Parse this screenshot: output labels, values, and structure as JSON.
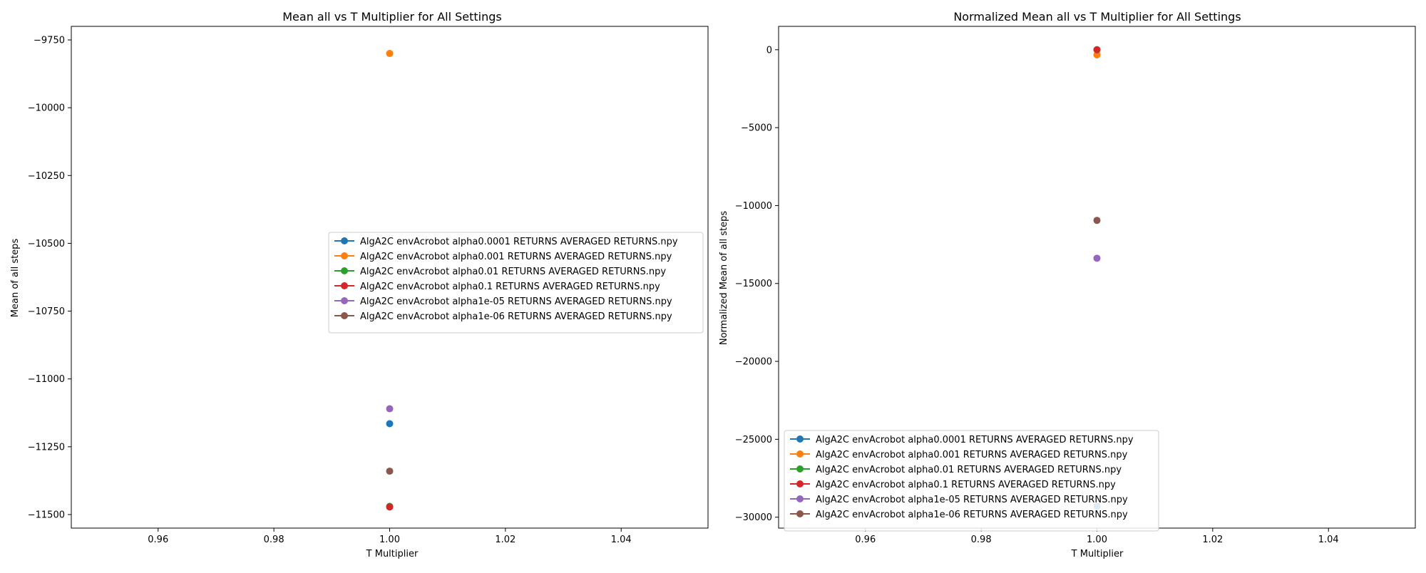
{
  "chart_data": [
    {
      "type": "scatter",
      "title": "Mean all vs T Multiplier for All Settings",
      "xlabel": "T Multiplier",
      "ylabel": "Mean of all steps",
      "xlim": [
        0.945,
        1.055
      ],
      "ylim": [
        -11550,
        -9700
      ],
      "xticks": [
        0.96,
        0.98,
        1.0,
        1.02,
        1.04
      ],
      "xtick_labels": [
        "0.96",
        "0.98",
        "1.00",
        "1.02",
        "1.04"
      ],
      "yticks": [
        -9750,
        -10000,
        -10250,
        -10500,
        -10750,
        -11000,
        -11250,
        -11500
      ],
      "ytick_labels": [
        "−9750",
        "−10000",
        "−10250",
        "−10500",
        "−10750",
        "−11000",
        "−11250",
        "−11500"
      ],
      "grid": false,
      "legend_position": "center-right",
      "series": [
        {
          "name": "AlgA2C envAcrobot alpha0.0001 RETURNS AVERAGED RETURNS.npy",
          "color": "#1f77b4",
          "x": [
            1.0
          ],
          "y": [
            -11165
          ]
        },
        {
          "name": "AlgA2C envAcrobot alpha0.001 RETURNS AVERAGED RETURNS.npy",
          "color": "#ff7f0e",
          "x": [
            1.0
          ],
          "y": [
            -9800
          ]
        },
        {
          "name": "AlgA2C envAcrobot alpha0.01 RETURNS AVERAGED RETURNS.npy",
          "color": "#2ca02c",
          "x": [
            1.0
          ],
          "y": [
            -11470
          ]
        },
        {
          "name": "AlgA2C envAcrobot alpha0.1 RETURNS AVERAGED RETURNS.npy",
          "color": "#d62728",
          "x": [
            1.0
          ],
          "y": [
            -11472
          ]
        },
        {
          "name": "AlgA2C envAcrobot alpha1e-05 RETURNS AVERAGED RETURNS.npy",
          "color": "#9467bd",
          "x": [
            1.0
          ],
          "y": [
            -11110
          ]
        },
        {
          "name": "AlgA2C envAcrobot alpha1e-06 RETURNS AVERAGED RETURNS.npy",
          "color": "#8c564b",
          "x": [
            1.0
          ],
          "y": [
            -11340
          ]
        }
      ]
    },
    {
      "type": "scatter",
      "title": "Normalized Mean all vs T Multiplier for All Settings",
      "xlabel": "T Multiplier",
      "ylabel": "Normalized Mean of all steps",
      "xlim": [
        0.945,
        1.055
      ],
      "ylim": [
        -30700,
        1500
      ],
      "xticks": [
        0.96,
        0.98,
        1.0,
        1.02,
        1.04
      ],
      "xtick_labels": [
        "0.96",
        "0.98",
        "1.00",
        "1.02",
        "1.04"
      ],
      "yticks": [
        0,
        -5000,
        -10000,
        -15000,
        -20000,
        -25000,
        -30000
      ],
      "ytick_labels": [
        "0",
        "−5000",
        "−10000",
        "−15000",
        "−20000",
        "−25000",
        "−30000"
      ],
      "grid": false,
      "legend_position": "lower-left",
      "series": [
        {
          "name": "AlgA2C envAcrobot alpha0.0001 RETURNS AVERAGED RETURNS.npy",
          "color": "#1f77b4",
          "x": [
            1.0
          ],
          "y": [
            -29300
          ]
        },
        {
          "name": "AlgA2C envAcrobot alpha0.001 RETURNS AVERAGED RETURNS.npy",
          "color": "#ff7f0e",
          "x": [
            1.0
          ],
          "y": [
            -330
          ]
        },
        {
          "name": "AlgA2C envAcrobot alpha0.01 RETURNS AVERAGED RETURNS.npy",
          "color": "#2ca02c",
          "x": [
            1.0
          ],
          "y": [
            0
          ]
        },
        {
          "name": "AlgA2C envAcrobot alpha0.1 RETURNS AVERAGED RETURNS.npy",
          "color": "#d62728",
          "x": [
            1.0
          ],
          "y": [
            0
          ]
        },
        {
          "name": "AlgA2C envAcrobot alpha1e-05 RETURNS AVERAGED RETURNS.npy",
          "color": "#9467bd",
          "x": [
            1.0
          ],
          "y": [
            -13380
          ]
        },
        {
          "name": "AlgA2C envAcrobot alpha1e-06 RETURNS AVERAGED RETURNS.npy",
          "color": "#8c564b",
          "x": [
            1.0
          ],
          "y": [
            -10950
          ]
        }
      ]
    }
  ]
}
